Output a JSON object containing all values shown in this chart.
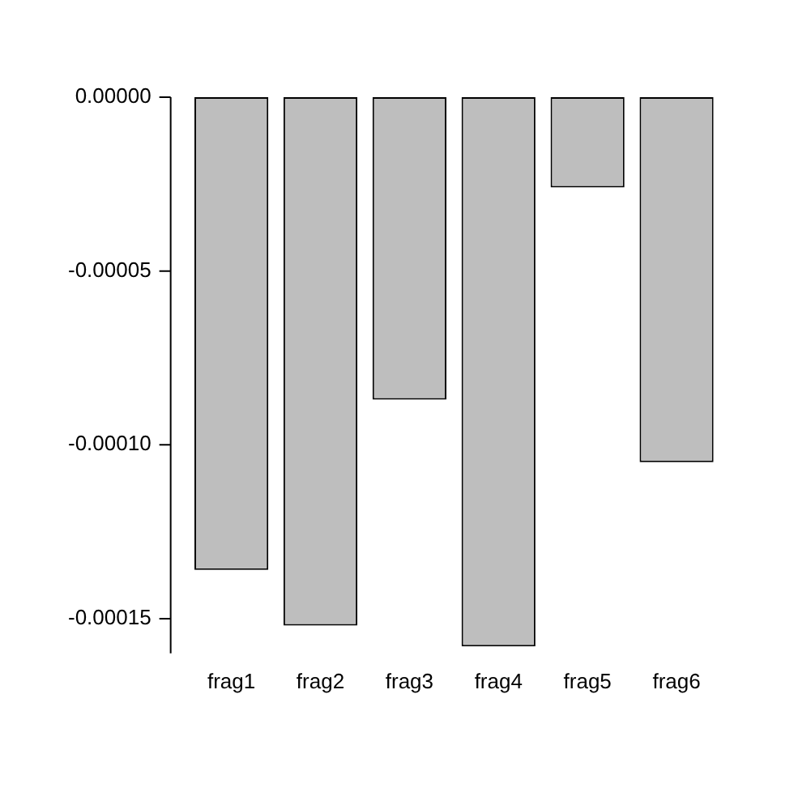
{
  "chart_data": {
    "type": "bar",
    "categories": [
      "frag1",
      "frag2",
      "frag3",
      "frag4",
      "frag5",
      "frag6"
    ],
    "values": [
      -0.000136,
      -0.000152,
      -8.7e-05,
      -0.000158,
      -2.6e-05,
      -0.000105
    ],
    "color": "#bebebe",
    "ylim": [
      -0.00016,
      0
    ],
    "yticks": [
      {
        "value": 0,
        "label": "0.00000"
      },
      {
        "value": -5e-05,
        "label": "-0.00005"
      },
      {
        "value": -0.0001,
        "label": "-0.00010"
      },
      {
        "value": -0.00015,
        "label": "-0.00015"
      }
    ],
    "grid": false,
    "legend": false
  }
}
